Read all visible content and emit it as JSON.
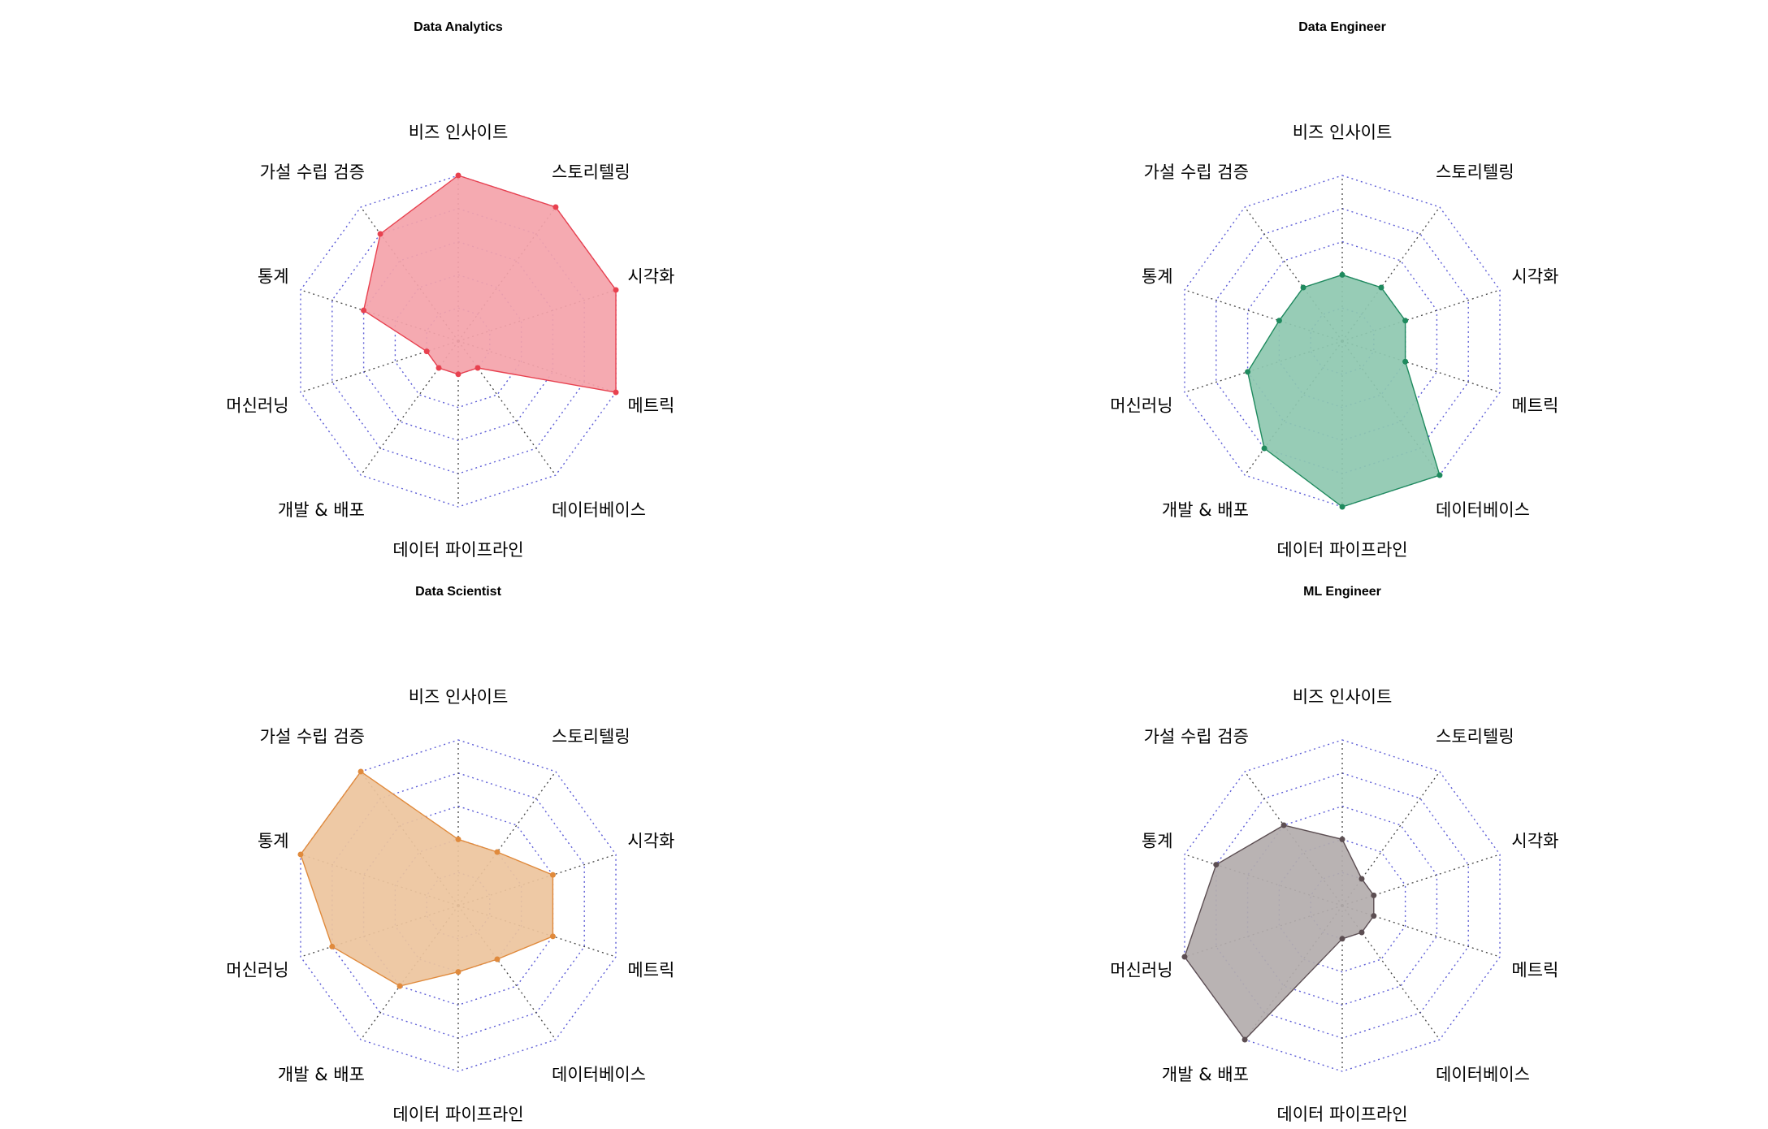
{
  "chart_data": [
    {
      "type": "radar",
      "title": "Data Analytics",
      "axes": [
        "비즈 인사이트",
        "스토리텔링",
        "시각화",
        "메트릭",
        "데이터베이스",
        "데이터 파이프라인",
        "개발 & 배포",
        "머신러닝",
        "통계",
        "가설 수립 검증"
      ],
      "values": [
        5,
        5,
        5,
        5,
        1,
        1,
        1,
        1,
        3,
        4
      ],
      "rlim": [
        0,
        5
      ],
      "levels": 5,
      "color": "#e8414f",
      "fill": "#f4a3aa"
    },
    {
      "type": "radar",
      "title": "Data Engineer",
      "axes": [
        "비즈 인사이트",
        "스토리텔링",
        "시각화",
        "메트릭",
        "데이터베이스",
        "데이터 파이프라인",
        "개발 & 배포",
        "머신러닝",
        "통계",
        "가설 수립 검증"
      ],
      "values": [
        2,
        2,
        2,
        2,
        5,
        5,
        4,
        3,
        2,
        2
      ],
      "rlim": [
        0,
        5
      ],
      "levels": 5,
      "color": "#1f8a5e",
      "fill": "#8ec8b0"
    },
    {
      "type": "radar",
      "title": "Data Scientist",
      "axes": [
        "비즈 인사이트",
        "스토리텔링",
        "시각화",
        "메트릭",
        "데이터베이스",
        "데이터 파이프라인",
        "개발 & 배포",
        "머신러닝",
        "통계",
        "가설 수립 검증"
      ],
      "values": [
        2,
        2,
        3,
        3,
        2,
        2,
        3,
        4,
        5,
        5
      ],
      "rlim": [
        0,
        5
      ],
      "levels": 5,
      "color": "#e08a3c",
      "fill": "#edc49d"
    },
    {
      "type": "radar",
      "title": "ML Engineer",
      "axes": [
        "비즈 인사이트",
        "스토리텔링",
        "시각화",
        "메트릭",
        "데이터베이스",
        "데이터 파이프라인",
        "개발 & 배포",
        "머신러닝",
        "통계",
        "가설 수립 검증"
      ],
      "values": [
        2,
        1,
        1,
        1,
        1,
        1,
        5,
        5,
        4,
        3
      ],
      "rlim": [
        0,
        5
      ],
      "levels": 5,
      "color": "#5c4e52",
      "fill": "#b3adad"
    }
  ]
}
